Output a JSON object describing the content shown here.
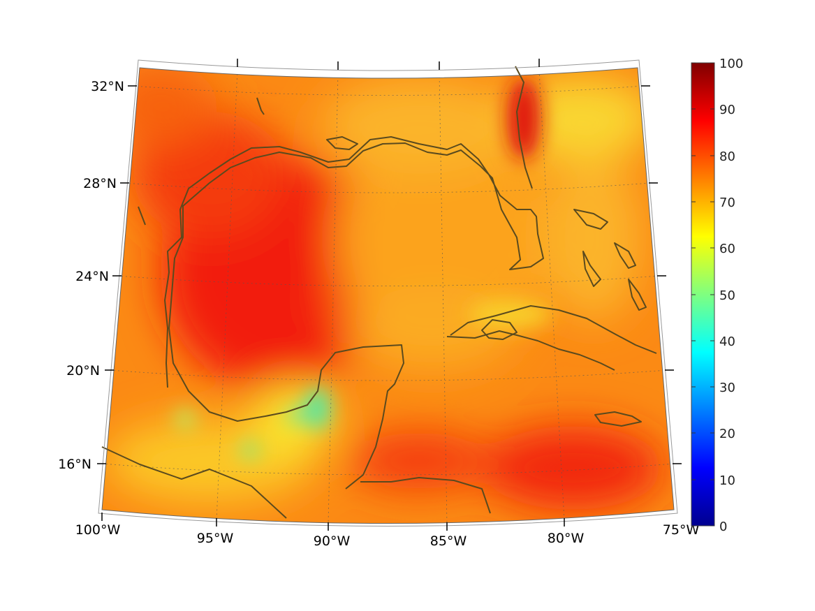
{
  "map": {
    "projection": "conic",
    "region": "Gulf of Mexico and western Caribbean",
    "extent": {
      "lon": [
        -100,
        -75
      ],
      "lat": [
        14,
        33
      ]
    },
    "graticule": "dotted",
    "coastline_color": "#5a4a1e"
  },
  "axes": {
    "lat_labels": [
      {
        "value": 32,
        "text": "32°N"
      },
      {
        "value": 28,
        "text": "28°N"
      },
      {
        "value": 24,
        "text": "24°N"
      },
      {
        "value": 20,
        "text": "20°N"
      },
      {
        "value": 16,
        "text": "16°N"
      }
    ],
    "lon_labels": [
      {
        "value": -100,
        "text": "100°W"
      },
      {
        "value": -95,
        "text": "95°W"
      },
      {
        "value": -90,
        "text": "90°W"
      },
      {
        "value": -85,
        "text": "85°W"
      },
      {
        "value": -80,
        "text": "80°W"
      },
      {
        "value": -75,
        "text": "75°W"
      }
    ]
  },
  "colorbar": {
    "colormap": "jet",
    "min": 0,
    "max": 100,
    "ticks": [
      "100",
      "90",
      "80",
      "70",
      "60",
      "50",
      "40",
      "30",
      "20",
      "10",
      "0"
    ]
  }
}
